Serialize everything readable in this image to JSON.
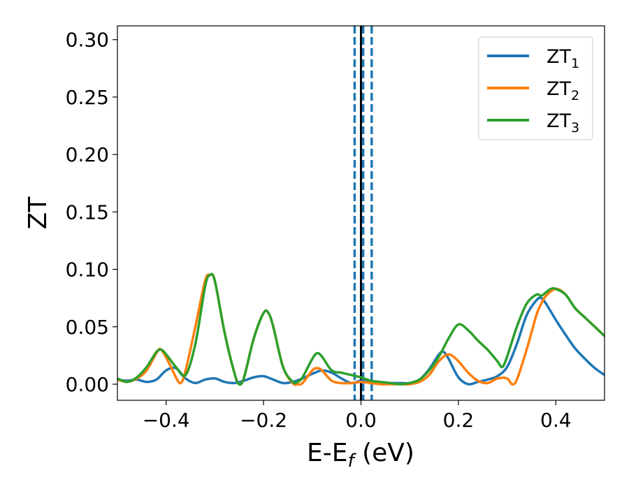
{
  "chart_data": {
    "type": "line",
    "xlabel_main": "E-E",
    "xlabel_sub": "f",
    "xlabel_tail": " (eV)",
    "ylabel": "ZT",
    "xlim": [
      -0.5,
      0.5
    ],
    "ylim": [
      -0.014,
      0.312
    ],
    "xticks": [
      -0.4,
      -0.2,
      0.0,
      0.2,
      0.4
    ],
    "xtick_labels": [
      "−0.4",
      "−0.2",
      "0.0",
      "0.2",
      "0.4"
    ],
    "yticks": [
      0.0,
      0.05,
      0.1,
      0.15,
      0.2,
      0.25,
      0.3
    ],
    "ytick_labels": [
      "0.00",
      "0.05",
      "0.10",
      "0.15",
      "0.20",
      "0.25",
      "0.30"
    ],
    "grid": false,
    "legend_position": "top-right",
    "vlines": [
      {
        "x": 0.0,
        "style": "solid",
        "color": "#000000"
      },
      {
        "x": -0.013,
        "style": "dashed",
        "color": "#1f77b4"
      },
      {
        "x": 0.0045,
        "style": "dashed",
        "color": "#1f77b4"
      },
      {
        "x": 0.022,
        "style": "dashed",
        "color": "#1f77b4"
      }
    ],
    "series": [
      {
        "name": "ZT",
        "name_sub": "1",
        "color": "#1f77b4",
        "x": [
          -0.5,
          -0.48,
          -0.46,
          -0.44,
          -0.42,
          -0.4,
          -0.38,
          -0.36,
          -0.34,
          -0.32,
          -0.3,
          -0.28,
          -0.26,
          -0.24,
          -0.22,
          -0.2,
          -0.18,
          -0.16,
          -0.14,
          -0.12,
          -0.1,
          -0.08,
          -0.06,
          -0.04,
          -0.02,
          0.0,
          0.02,
          0.04,
          0.06,
          0.08,
          0.1,
          0.12,
          0.14,
          0.16,
          0.17,
          0.18,
          0.2,
          0.22,
          0.24,
          0.26,
          0.28,
          0.3,
          0.32,
          0.34,
          0.36,
          0.37,
          0.38,
          0.4,
          0.42,
          0.44,
          0.46,
          0.48,
          0.5
        ],
        "y": [
          0.004,
          0.003,
          0.004,
          0.002,
          0.004,
          0.012,
          0.014,
          0.005,
          0.001,
          0.004,
          0.005,
          0.002,
          0.001,
          0.003,
          0.006,
          0.007,
          0.004,
          0.001,
          0.002,
          0.005,
          0.009,
          0.012,
          0.01,
          0.005,
          0.001,
          0.003,
          0.002,
          0.001,
          0.001,
          0.001,
          0.001,
          0.004,
          0.013,
          0.026,
          0.028,
          0.022,
          0.006,
          0.0,
          0.002,
          0.004,
          0.007,
          0.015,
          0.035,
          0.06,
          0.073,
          0.075,
          0.07,
          0.056,
          0.043,
          0.031,
          0.022,
          0.014,
          0.008
        ]
      },
      {
        "name": "ZT",
        "name_sub": "2",
        "color": "#ff7f0e",
        "x": [
          -0.5,
          -0.48,
          -0.46,
          -0.44,
          -0.42,
          -0.41,
          -0.39,
          -0.38,
          -0.37,
          -0.36,
          -0.34,
          -0.32,
          -0.31,
          -0.3,
          -0.28,
          -0.26,
          -0.25,
          -0.24,
          -0.22,
          -0.2,
          -0.19,
          -0.18,
          -0.16,
          -0.14,
          -0.13,
          -0.12,
          -0.1,
          -0.09,
          -0.08,
          -0.06,
          -0.04,
          -0.02,
          0.0,
          0.02,
          0.04,
          0.06,
          0.08,
          0.1,
          0.12,
          0.14,
          0.16,
          0.18,
          0.2,
          0.22,
          0.24,
          0.26,
          0.28,
          0.3,
          0.31,
          0.32,
          0.34,
          0.36,
          0.37,
          0.38,
          0.4,
          0.42,
          0.44,
          0.46,
          0.48,
          0.5
        ],
        "y": [
          0.004,
          0.002,
          0.005,
          0.012,
          0.027,
          0.03,
          0.015,
          0.006,
          0.001,
          0.012,
          0.05,
          0.09,
          0.095,
          0.09,
          0.045,
          0.01,
          0.0,
          0.006,
          0.04,
          0.062,
          0.062,
          0.05,
          0.015,
          0.001,
          0.0,
          0.001,
          0.012,
          0.014,
          0.012,
          0.003,
          0.001,
          0.001,
          0.002,
          0.001,
          0.0,
          0.0,
          0.0,
          0.0,
          0.002,
          0.008,
          0.02,
          0.026,
          0.02,
          0.01,
          0.003,
          0.001,
          0.005,
          0.005,
          0.0,
          0.004,
          0.03,
          0.06,
          0.07,
          0.077,
          0.083,
          0.078,
          0.066,
          0.058,
          0.05,
          0.042
        ]
      },
      {
        "name": "ZT",
        "name_sub": "3",
        "color": "#2ca02c",
        "x": [
          -0.5,
          -0.48,
          -0.46,
          -0.44,
          -0.42,
          -0.41,
          -0.4,
          -0.38,
          -0.36,
          -0.34,
          -0.32,
          -0.31,
          -0.3,
          -0.28,
          -0.26,
          -0.25,
          -0.24,
          -0.22,
          -0.2,
          -0.19,
          -0.18,
          -0.16,
          -0.14,
          -0.13,
          -0.12,
          -0.1,
          -0.09,
          -0.08,
          -0.06,
          -0.04,
          -0.02,
          0.0,
          0.02,
          0.04,
          0.06,
          0.08,
          0.1,
          0.12,
          0.14,
          0.16,
          0.18,
          0.2,
          0.22,
          0.24,
          0.26,
          0.28,
          0.29,
          0.3,
          0.32,
          0.34,
          0.36,
          0.37,
          0.38,
          0.39,
          0.4,
          0.42,
          0.44,
          0.46,
          0.48,
          0.5
        ],
        "y": [
          0.005,
          0.002,
          0.006,
          0.015,
          0.028,
          0.03,
          0.026,
          0.015,
          0.008,
          0.035,
          0.085,
          0.095,
          0.09,
          0.045,
          0.01,
          0.0,
          0.006,
          0.04,
          0.062,
          0.062,
          0.05,
          0.015,
          0.002,
          0.002,
          0.006,
          0.022,
          0.027,
          0.024,
          0.012,
          0.01,
          0.008,
          0.006,
          0.003,
          0.002,
          0.001,
          0.0,
          0.001,
          0.004,
          0.012,
          0.024,
          0.04,
          0.052,
          0.047,
          0.038,
          0.03,
          0.02,
          0.015,
          0.024,
          0.05,
          0.07,
          0.078,
          0.077,
          0.08,
          0.083,
          0.083,
          0.078,
          0.066,
          0.058,
          0.05,
          0.042
        ]
      }
    ]
  }
}
